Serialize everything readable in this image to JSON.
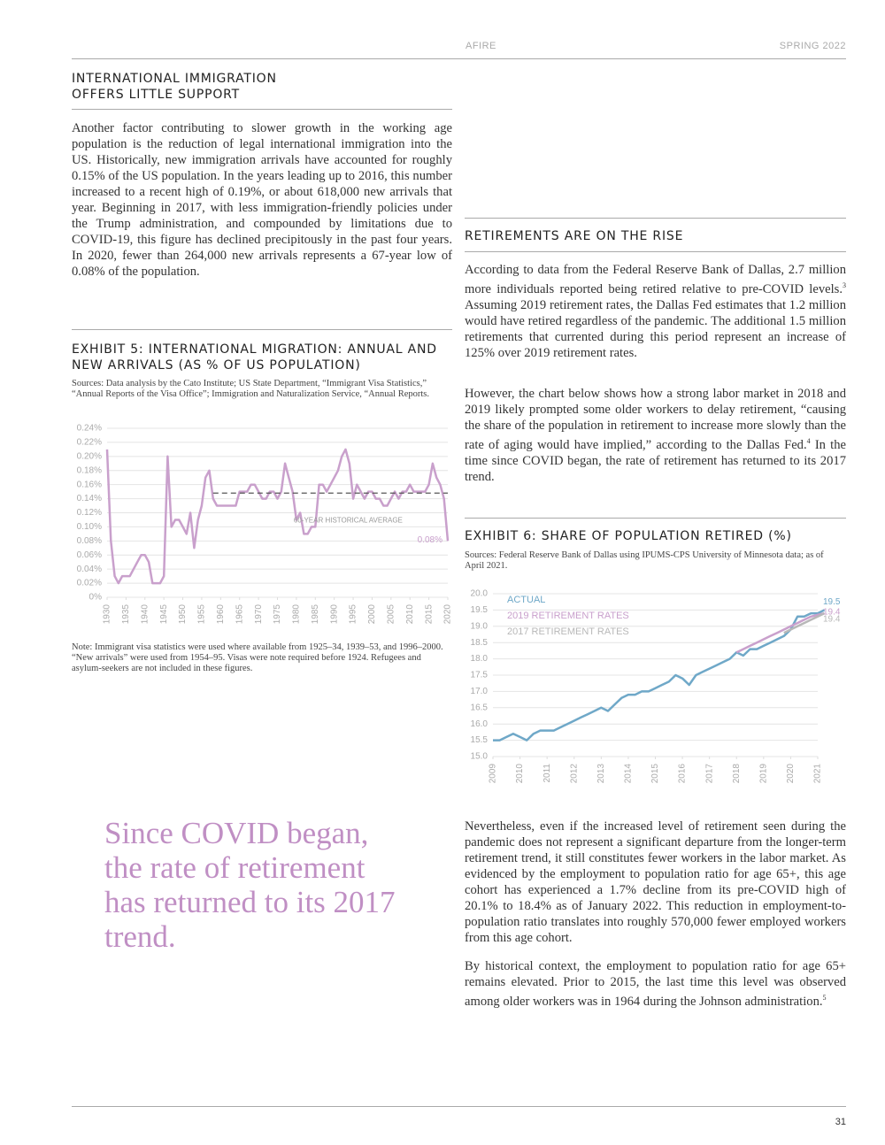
{
  "header": {
    "left": "AFIRE",
    "right": "SPRING 2022"
  },
  "section1": {
    "heading": "INTERNATIONAL IMMIGRATION OFFERS LITTLE SUPPORT",
    "paragraph": "Another factor contributing to slower growth in the working age population is the reduction of legal international immigration into the US. Historically, new immigration arrivals have accounted for roughly 0.15% of the US population. In the years leading up to 2016, this number increased to a recent high of 0.19%, or about 618,000 new arrivals that year. Beginning in 2017, with less immigration-friendly policies under the Trump administration, and compounded by limitations due to COVID-19, this figure has declined precipitously in the past four years. In 2020, fewer than 264,000 new arrivals represents a 67-year low of 0.08% of the population."
  },
  "exhibit5": {
    "title": "EXHIBIT 5: INTERNATIONAL MIGRATION: ANNUAL AND NEW ARRIVALS (AS % OF US POPULATION)",
    "sources": "Sources: Data analysis by the Cato Institute; US State Department, “Immigrant Visa Statistics,” “Annual Reports of the Visa Office”; Immigration and Naturalization Service, “Annual Reports.",
    "note": "Note: Immigrant visa statistics were used where available from 1925–34, 1939–53, and 1996–2000. “New arrivals” were used from 1954–95. Visas were note required before 1924. Refugees and asylum-seekers are not included in these figures."
  },
  "section2": {
    "heading": "RETIREMENTS ARE ON THE RISE",
    "paragraphs": [
      [
        "According to data from the Federal Reserve Bank of Dallas, 2.7 million more individuals reported being retired relative to pre-COVID levels.",
        "3",
        " Assuming 2019 retirement rates, the Dallas Fed estimates that 1.2 million would have retired regardless of the pandemic. The additional 1.5 million retirements that currented during this period represent an increase of 125% over 2019 retirement rates."
      ],
      [
        "However, the chart below shows how a strong labor market in 2018 and 2019 likely prompted some older workers to delay retirement, “causing the share of the population in retirement to increase more slowly than the rate of aging would have implied,” according to the Dallas Fed.",
        "4",
        " In the time since COVID began, the rate of retirement has returned to its 2017 trend."
      ]
    ]
  },
  "exhibit6": {
    "title": "EXHIBIT 6: SHARE OF POPULATION RETIRED (%)",
    "sources": "Sources: Federal Reserve Bank of Dallas using IPUMS-CPS University of Minnesota data; as of April 2021."
  },
  "pull_quote": "Since COVID began, the rate of retirement has returned to its 2017 trend.",
  "section3": {
    "paragraphs": [
      [
        "Nevertheless, even if the increased level of retirement seen during the pandemic does not represent a significant departure from the longer-term retirement trend, it still constitutes fewer workers in the labor market. As evidenced by the employment to population ratio for age 65+, this age cohort has experienced a 1.7% decline from its pre-COVID high of 20.1% to 18.4% as of January 2022. This reduction in employment-to-population ratio translates into roughly 570,000 fewer employed workers from this age cohort."
      ],
      [
        "By historical context, the employment to population ratio for age 65+ remains elevated. Prior to 2015, the last time this level was observed among older workers was in 1964 during the Johnson administration.",
        "5"
      ]
    ]
  },
  "page_number": "31",
  "chart_data": [
    {
      "type": "line",
      "color": "#c9a0cc",
      "grid": true,
      "x": [
        1930,
        1931,
        1932,
        1933,
        1934,
        1935,
        1936,
        1937,
        1938,
        1939,
        1940,
        1941,
        1942,
        1943,
        1944,
        1945,
        1946,
        1947,
        1948,
        1949,
        1950,
        1951,
        1952,
        1953,
        1954,
        1955,
        1956,
        1957,
        1958,
        1959,
        1960,
        1961,
        1962,
        1963,
        1964,
        1965,
        1966,
        1967,
        1968,
        1969,
        1970,
        1971,
        1972,
        1973,
        1974,
        1975,
        1976,
        1977,
        1978,
        1979,
        1980,
        1981,
        1982,
        1983,
        1984,
        1985,
        1986,
        1987,
        1988,
        1989,
        1990,
        1991,
        1992,
        1993,
        1994,
        1995,
        1996,
        1997,
        1998,
        1999,
        2000,
        2001,
        2002,
        2003,
        2004,
        2005,
        2006,
        2007,
        2008,
        2009,
        2010,
        2011,
        2012,
        2013,
        2014,
        2015,
        2016,
        2017,
        2018,
        2019,
        2020
      ],
      "values": [
        0.21,
        0.08,
        0.03,
        0.02,
        0.03,
        0.03,
        0.03,
        0.04,
        0.05,
        0.06,
        0.06,
        0.05,
        0.02,
        0.02,
        0.02,
        0.03,
        0.2,
        0.1,
        0.11,
        0.11,
        0.1,
        0.09,
        0.12,
        0.07,
        0.11,
        0.13,
        0.17,
        0.18,
        0.14,
        0.13,
        0.13,
        0.13,
        0.13,
        0.13,
        0.13,
        0.15,
        0.15,
        0.15,
        0.16,
        0.16,
        0.15,
        0.14,
        0.14,
        0.15,
        0.15,
        0.14,
        0.15,
        0.19,
        0.17,
        0.15,
        0.11,
        0.12,
        0.09,
        0.09,
        0.1,
        0.1,
        0.16,
        0.16,
        0.15,
        0.16,
        0.17,
        0.18,
        0.2,
        0.21,
        0.19,
        0.14,
        0.16,
        0.15,
        0.14,
        0.15,
        0.15,
        0.14,
        0.14,
        0.13,
        0.13,
        0.14,
        0.15,
        0.14,
        0.15,
        0.15,
        0.16,
        0.15,
        0.15,
        0.15,
        0.15,
        0.16,
        0.19,
        0.17,
        0.16,
        0.14,
        0.08
      ],
      "xlim": [
        1930,
        2020
      ],
      "xticks": [
        1930,
        1935,
        1940,
        1945,
        1950,
        1955,
        1960,
        1965,
        1970,
        1975,
        1980,
        1985,
        1990,
        1995,
        2000,
        2005,
        2010,
        2015,
        2020
      ],
      "ylim": [
        0,
        0.24
      ],
      "yticks": [
        {
          "value": 0,
          "label": "0%"
        },
        {
          "value": 0.02,
          "label": "0.02%"
        },
        {
          "value": 0.04,
          "label": "0.04%"
        },
        {
          "value": 0.06,
          "label": "0.06%"
        },
        {
          "value": 0.08,
          "label": "0.08%"
        },
        {
          "value": 0.1,
          "label": "0.10%"
        },
        {
          "value": 0.12,
          "label": "0.12%"
        },
        {
          "value": 0.14,
          "label": "0.14%"
        },
        {
          "value": 0.16,
          "label": "0.16%"
        },
        {
          "value": 0.18,
          "label": "0.18%"
        },
        {
          "value": 0.2,
          "label": "0.20%"
        },
        {
          "value": 0.22,
          "label": "0.22%"
        },
        {
          "value": 0.24,
          "label": "0.24%"
        }
      ],
      "reference_line": {
        "value": 0.148,
        "start": 1958,
        "label": "60-YEAR HISTORICAL AVERAGE"
      },
      "annotations": [
        {
          "x": 2020,
          "label": "0.08%"
        }
      ]
    },
    {
      "type": "line",
      "grid": true,
      "legend": "top-left",
      "label_last": true,
      "x": [
        2009,
        2009.25,
        2009.5,
        2009.75,
        2010,
        2010.25,
        2010.5,
        2010.75,
        2011,
        2011.25,
        2011.5,
        2011.75,
        2012,
        2012.25,
        2012.5,
        2012.75,
        2013,
        2013.25,
        2013.5,
        2013.75,
        2014,
        2014.25,
        2014.5,
        2014.75,
        2015,
        2015.25,
        2015.5,
        2015.75,
        2016,
        2016.25,
        2016.5,
        2016.75,
        2017,
        2017.25,
        2017.5,
        2017.75,
        2018,
        2018.25,
        2018.5,
        2018.75,
        2019,
        2019.25,
        2019.5,
        2019.75,
        2020,
        2020.25,
        2020.5,
        2020.75,
        2021,
        2021.25
      ],
      "series": [
        {
          "name": "ACTUAL",
          "color": "#6fa8c8",
          "values": [
            15.5,
            15.5,
            15.6,
            15.7,
            15.6,
            15.5,
            15.7,
            15.8,
            15.8,
            15.8,
            15.9,
            16.0,
            16.1,
            16.2,
            16.3,
            16.4,
            16.5,
            16.4,
            16.6,
            16.8,
            16.9,
            16.9,
            17.0,
            17.0,
            17.1,
            17.2,
            17.3,
            17.5,
            17.4,
            17.2,
            17.5,
            17.6,
            17.7,
            17.8,
            17.9,
            18.0,
            18.2,
            18.1,
            18.3,
            18.3,
            18.4,
            18.5,
            18.6,
            18.7,
            18.9,
            19.3,
            19.3,
            19.4,
            19.4,
            19.5
          ]
        },
        {
          "name": "2019 RETIREMENT RATES",
          "color": "#c9a0cc",
          "values": [
            null,
            null,
            null,
            null,
            null,
            null,
            null,
            null,
            null,
            null,
            null,
            null,
            null,
            null,
            null,
            null,
            null,
            null,
            null,
            null,
            null,
            null,
            null,
            null,
            null,
            null,
            null,
            null,
            null,
            null,
            null,
            null,
            null,
            null,
            null,
            null,
            18.2,
            18.3,
            18.4,
            18.5,
            18.6,
            18.7,
            18.8,
            18.9,
            19.0,
            19.1,
            19.2,
            19.3,
            19.35,
            19.4
          ]
        },
        {
          "name": "2017 RETIREMENT RATES",
          "color": "#b8b8b8",
          "values": [
            null,
            null,
            null,
            null,
            null,
            null,
            null,
            null,
            null,
            null,
            null,
            null,
            null,
            null,
            null,
            null,
            null,
            null,
            null,
            null,
            null,
            null,
            null,
            null,
            null,
            null,
            null,
            null,
            null,
            null,
            null,
            null,
            null,
            null,
            null,
            null,
            null,
            null,
            null,
            null,
            null,
            null,
            null,
            18.8,
            18.9,
            19.0,
            19.1,
            19.2,
            19.3,
            19.4
          ]
        }
      ],
      "xlim": [
        2009,
        2021
      ],
      "xticks": [
        2009,
        2010,
        2011,
        2012,
        2013,
        2014,
        2015,
        2016,
        2017,
        2018,
        2019,
        2020,
        2021
      ],
      "ylim": [
        15,
        20
      ],
      "yticks": [
        {
          "value": 15,
          "label": "15.0"
        },
        15.5,
        {
          "value": 16,
          "label": "16.0"
        },
        16.5,
        {
          "value": 17,
          "label": "17.0"
        },
        17.5,
        {
          "value": 18,
          "label": "18.0"
        },
        18.5,
        {
          "value": 19,
          "label": "19.0"
        },
        19.5,
        {
          "value": 20,
          "label": "20.0"
        }
      ]
    }
  ]
}
